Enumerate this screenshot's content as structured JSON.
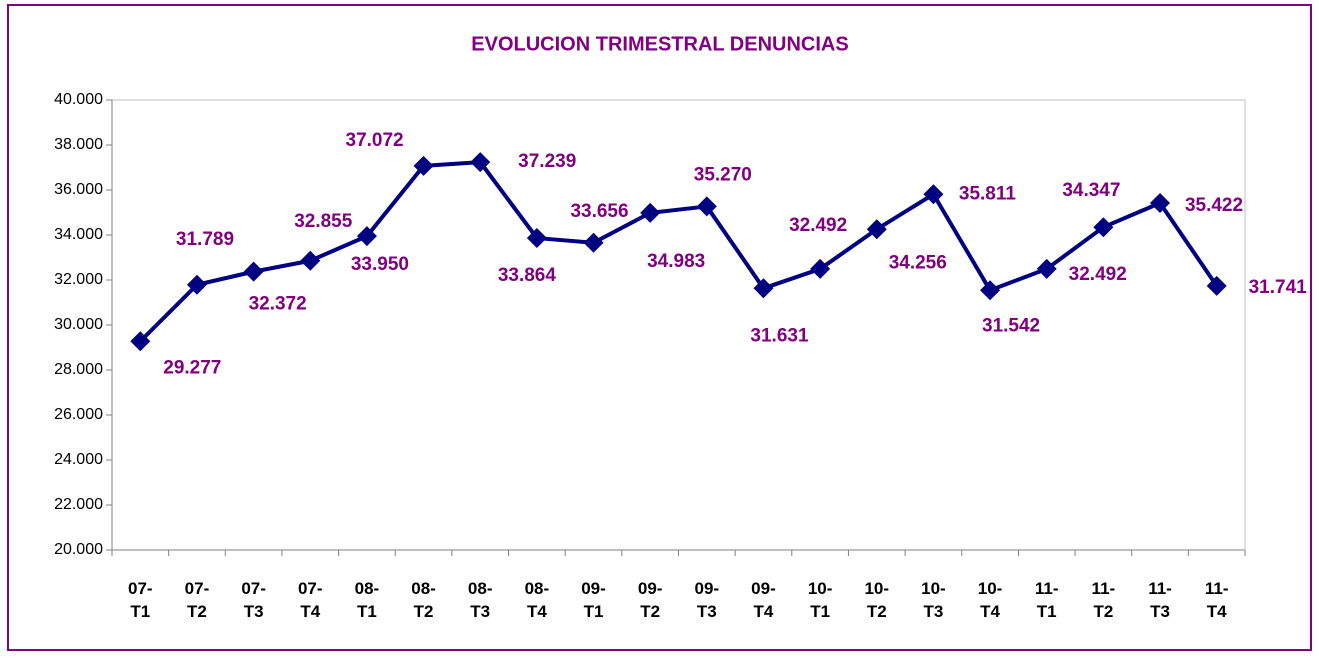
{
  "chart_data": {
    "type": "line",
    "title": "EVOLUCION TRIMESTRAL DENUNCIAS",
    "categories": [
      "07-T1",
      "07-T2",
      "07-T3",
      "07-T4",
      "08-T1",
      "08-T2",
      "08-T3",
      "08-T4",
      "09-T1",
      "09-T2",
      "09-T3",
      "09-T4",
      "10-T1",
      "10-T2",
      "10-T3",
      "10-T4",
      "11-T1",
      "11-T2",
      "11-T3",
      "11-T4"
    ],
    "series": [
      {
        "color": "#000080",
        "values": [
          29277,
          31789,
          32372,
          32855,
          33950,
          37072,
          37239,
          33864,
          33656,
          34983,
          35270,
          31631,
          32492,
          34256,
          35811,
          31542,
          32492,
          34347,
          35422,
          31741
        ],
        "value_labels": [
          "29.277",
          "31.789",
          "32.372",
          "32.855",
          "33.950",
          "37.072",
          "37.239",
          "33.864",
          "33.656",
          "34.983",
          "35.270",
          "31.631",
          "32.492",
          "34.256",
          "35.811",
          "31.542",
          "32.492",
          "34.347",
          "35.422",
          "31.741"
        ]
      }
    ],
    "ylim": [
      20000,
      40000
    ],
    "yticks": [
      {
        "value": 20000,
        "label": "20.000"
      },
      {
        "value": 22000,
        "label": "22.000"
      },
      {
        "value": 24000,
        "label": "24.000"
      },
      {
        "value": 26000,
        "label": "26.000"
      },
      {
        "value": 28000,
        "label": "28.000"
      },
      {
        "value": 30000,
        "label": "30.000"
      },
      {
        "value": 32000,
        "label": "32.000"
      },
      {
        "value": 34000,
        "label": "34.000"
      },
      {
        "value": 36000,
        "label": "36.000"
      },
      {
        "value": 38000,
        "label": "38.000"
      },
      {
        "value": 40000,
        "label": "40.000"
      }
    ],
    "grid": false,
    "label_color": "#800080"
  }
}
